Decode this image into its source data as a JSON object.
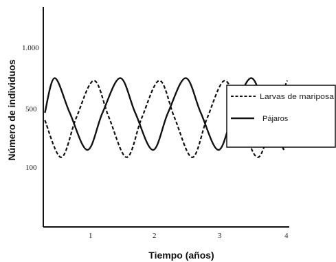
{
  "chart_data": {
    "type": "line",
    "xlabel": "Tiempo (años)",
    "ylabel": "Número de individuos",
    "x_ticks": [
      "1",
      "2",
      "3",
      "4"
    ],
    "y_ticks": [
      "100",
      "500",
      "1.000"
    ],
    "xlim": [
      0.3,
      4
    ],
    "grid": false,
    "legend_position": "right",
    "series": [
      {
        "name": "Larvas de mariposa",
        "style": "dashed",
        "color": "#111111",
        "x": [
          0.3,
          0.55,
          0.78,
          1.05,
          1.28,
          1.55,
          1.78,
          2.05,
          2.28,
          2.55,
          2.78,
          3.05,
          3.28,
          3.55,
          3.78,
          4.0
        ],
        "level": [
          0.07,
          -0.08,
          0.08,
          0.23,
          0.08,
          -0.08,
          0.08,
          0.23,
          0.08,
          -0.08,
          0.08,
          0.23,
          0.08,
          -0.08,
          0.08,
          0.23
        ]
      },
      {
        "name": "Pájaros",
        "style": "solid",
        "color": "#111111",
        "x": [
          0.3,
          0.45,
          0.68,
          0.95,
          1.18,
          1.45,
          1.68,
          1.95,
          2.18,
          2.45,
          2.68,
          2.95,
          3.18,
          3.45,
          3.68,
          3.95
        ],
        "level": [
          0.1,
          0.24,
          0.1,
          -0.05,
          0.1,
          0.24,
          0.1,
          -0.05,
          0.1,
          0.24,
          0.1,
          -0.05,
          0.1,
          0.24,
          0.1,
          -0.05
        ]
      }
    ]
  }
}
